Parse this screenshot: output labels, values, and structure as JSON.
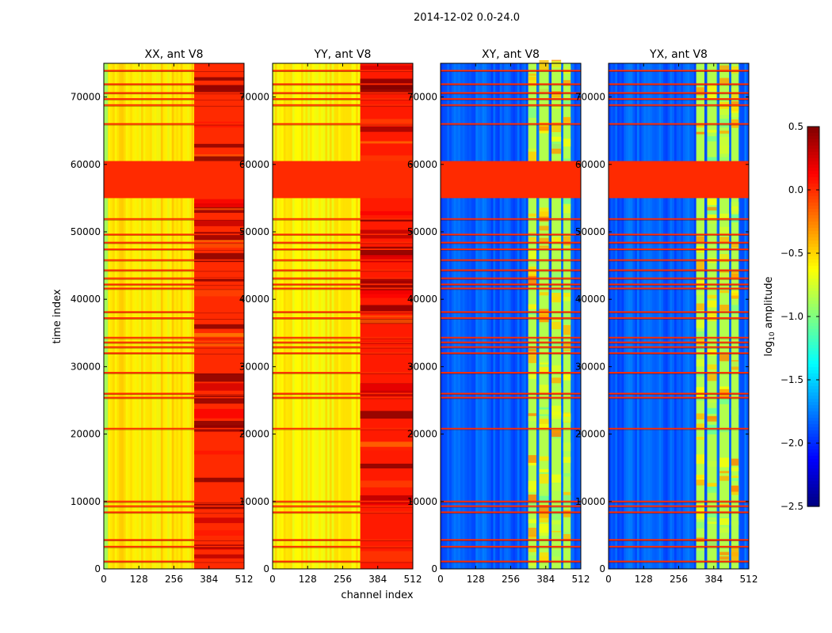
{
  "figure": {
    "suptitle": "2014-12-02 0.0-24.0",
    "xlabel": "channel index",
    "ylabel": "time index"
  },
  "colorbar": {
    "label": "log",
    "label_sub": "10",
    "label_rest": " amplitude",
    "range": [
      -2.5,
      0.5
    ],
    "ticks": [
      0.5,
      0.0,
      -0.5,
      -1.0,
      -1.5,
      -2.0,
      -2.5
    ],
    "tick_labels": [
      "0.5",
      "0.0",
      "−0.5",
      "−1.0",
      "−1.5",
      "−2.0",
      "−2.5"
    ],
    "colormap": "jet"
  },
  "chart_data": [
    {
      "type": "heatmap",
      "title": "XX, ant V8",
      "x_range": [
        0,
        512
      ],
      "y_range": [
        0,
        75000
      ],
      "x_ticks": [
        0,
        128,
        256,
        384,
        512
      ],
      "y_ticks": [
        0,
        10000,
        20000,
        30000,
        40000,
        50000,
        60000,
        70000
      ],
      "base_level": -0.55,
      "band_channels": [
        [
          330,
          512
        ]
      ],
      "band_level": 0.0,
      "edge_channels": [
        [
          0,
          15
        ]
      ],
      "edge_level": -0.95,
      "flagged_time_block": [
        55000,
        60500
      ],
      "flagged_level": 0.0
    },
    {
      "type": "heatmap",
      "title": "YY, ant V8",
      "x_range": [
        0,
        512
      ],
      "y_range": [
        0,
        75000
      ],
      "x_ticks": [
        0,
        128,
        256,
        384,
        512
      ],
      "y_ticks": [
        0,
        10000,
        20000,
        30000,
        40000,
        50000,
        60000,
        70000
      ],
      "base_level": -0.6,
      "band_channels": [
        [
          320,
          512
        ]
      ],
      "band_level": 0.05,
      "edge_channels": [],
      "edge_level": -0.95,
      "flagged_time_block": [
        55000,
        60500
      ],
      "flagged_level": 0.0
    },
    {
      "type": "heatmap",
      "title": "XY, ant V8",
      "x_range": [
        0,
        512
      ],
      "y_range": [
        0,
        75000
      ],
      "x_ticks": [
        0,
        128,
        256,
        384,
        512
      ],
      "y_ticks": [
        0,
        10000,
        20000,
        30000,
        40000,
        50000,
        60000,
        70000
      ],
      "base_level": -1.85,
      "band_channels": [
        [
          320,
          350
        ],
        [
          360,
          395
        ],
        [
          405,
          440
        ],
        [
          448,
          475
        ]
      ],
      "band_level": -0.85,
      "edge_channels": [],
      "edge_level": -1.85,
      "flagged_time_block": [
        55000,
        60500
      ],
      "flagged_level": 0.0
    },
    {
      "type": "heatmap",
      "title": "YX, ant V8",
      "x_range": [
        0,
        512
      ],
      "y_range": [
        0,
        75000
      ],
      "x_ticks": [
        0,
        128,
        256,
        384,
        512
      ],
      "y_ticks": [
        0,
        10000,
        20000,
        30000,
        40000,
        50000,
        60000,
        70000
      ],
      "base_level": -1.85,
      "band_channels": [
        [
          320,
          350
        ],
        [
          360,
          395
        ],
        [
          405,
          440
        ],
        [
          448,
          475
        ]
      ],
      "band_level": -0.85,
      "edge_channels": [],
      "edge_level": -1.85,
      "flagged_time_block": [
        55000,
        60500
      ],
      "flagged_level": 0.0
    }
  ],
  "flagged_time_rows": [
    1000,
    3200,
    4200,
    8300,
    9200,
    9900,
    20700,
    25300,
    25900,
    29000,
    31900,
    32800,
    33500,
    34200,
    37100,
    38000,
    41500,
    42100,
    43000,
    44200,
    45700,
    47300,
    48300,
    49500,
    51800,
    65900,
    68700,
    69600,
    70500,
    71800,
    73800
  ]
}
